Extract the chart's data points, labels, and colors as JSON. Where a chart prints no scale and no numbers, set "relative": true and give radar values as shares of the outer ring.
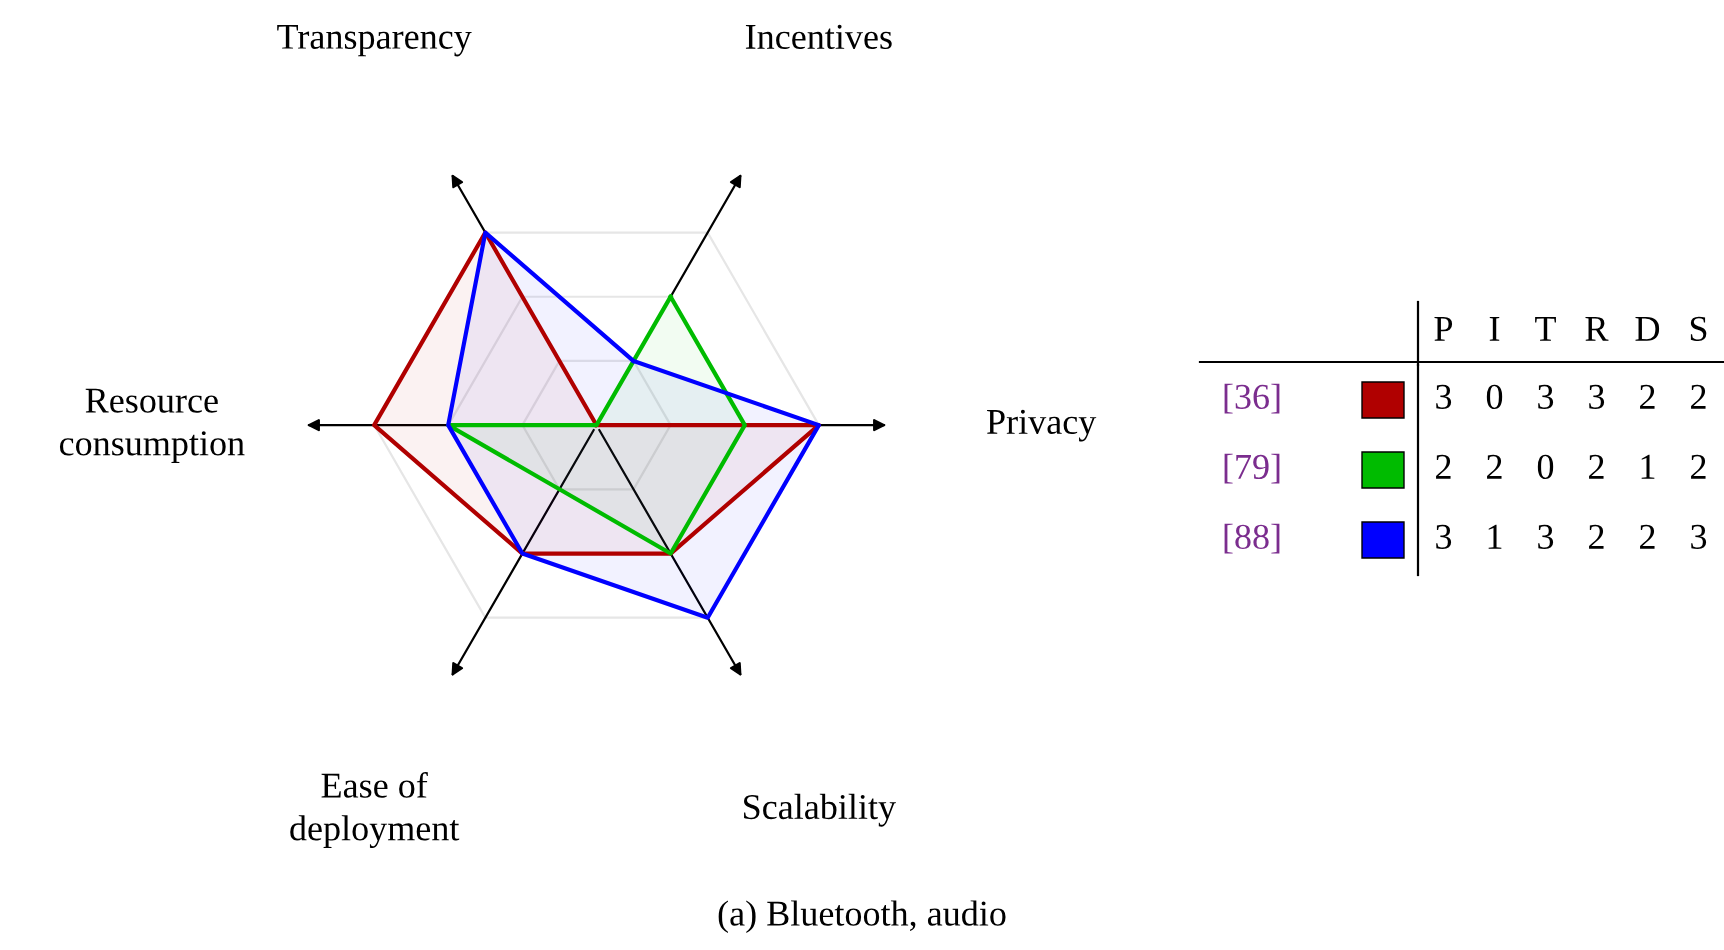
{
  "chart_data": [
    {
      "type": "radar",
      "title": "(a) Bluetooth, audio",
      "relative": true,
      "grid": true,
      "legend": "right",
      "categories": [
        "Incentives",
        "Privacy",
        "Scalability",
        "Ease of\ndeployment",
        "Resource\nconsumption",
        "Transparency"
      ],
      "series": [
        {
          "name": "[36]",
          "color": "#b00000",
          "values": [
            0,
            1,
            0.667,
            0.667,
            1,
            1
          ]
        },
        {
          "name": "[79]",
          "color": "#00bb00",
          "values": [
            0.667,
            0.667,
            0.667,
            0.333,
            0.667,
            0
          ]
        },
        {
          "name": "[88]",
          "color": "#0000ff",
          "values": [
            0.333,
            1,
            1,
            0.667,
            0.667,
            1
          ]
        }
      ]
    },
    {
      "type": "heatmap",
      "categories": [
        "P",
        "I",
        "T",
        "R",
        "D",
        "S"
      ],
      "y_categories": [
        null,
        null,
        null
      ],
      "cells": [
        [
          3,
          0,
          3,
          3,
          2,
          2
        ],
        [
          2,
          2,
          0,
          2,
          1,
          2
        ],
        [
          3,
          1,
          3,
          2,
          2,
          3
        ]
      ],
      "data_labels": true
    }
  ]
}
